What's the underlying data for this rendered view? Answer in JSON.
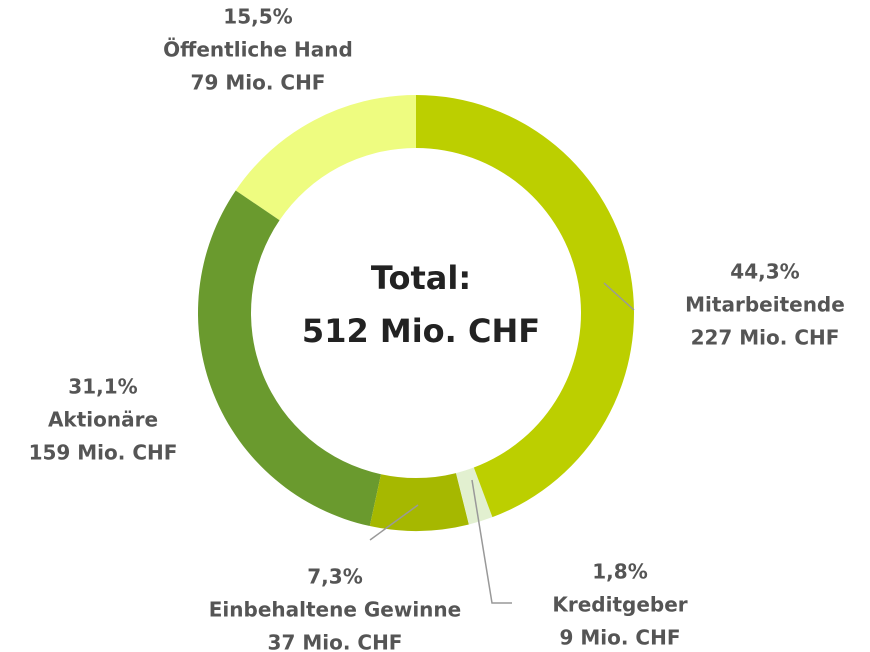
{
  "chart_data": {
    "type": "donut",
    "categories": [
      "Mitarbeitende",
      "Kreditgeber",
      "Einbehaltene Gewinne",
      "Aktionäre",
      "Öffentliche Hand"
    ],
    "values": [
      44.3,
      1.8,
      7.3,
      31.1,
      15.5
    ],
    "value_labels": [
      "44,3%",
      "1,8%",
      "7,3%",
      "31,1%",
      "15,5%"
    ],
    "amounts": [
      227,
      9,
      37,
      159,
      79
    ],
    "amount_labels": [
      "227 Mio. CHF",
      "9 Mio. CHF",
      "37 Mio. CHF",
      "159 Mio. CHF",
      "79 Mio. CHF"
    ],
    "colors": [
      "#bccf00",
      "#e2f0d0",
      "#a6b800",
      "#6a9a2e",
      "#eefc80"
    ],
    "center_title": "Total:",
    "center_value": "512 Mio. CHF"
  }
}
